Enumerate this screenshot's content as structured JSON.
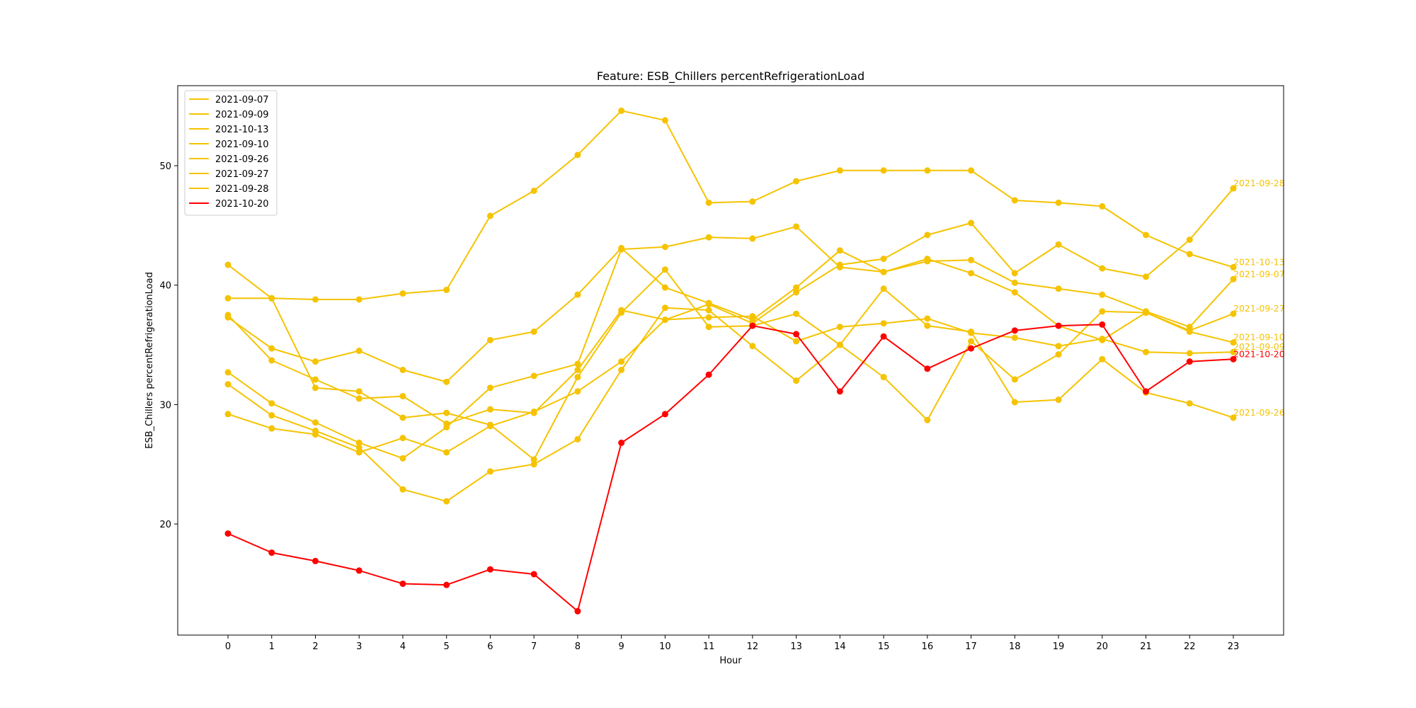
{
  "chart_data": {
    "type": "line",
    "title": "Feature: ESB_Chillers percentRefrigerationLoad",
    "xlabel": "Hour",
    "ylabel": "ESB_Chillers percentRefrigerationLoad",
    "x": [
      0,
      1,
      2,
      3,
      4,
      5,
      6,
      7,
      8,
      9,
      10,
      11,
      12,
      13,
      14,
      15,
      16,
      17,
      18,
      19,
      20,
      21,
      22,
      23
    ],
    "xticks": [
      "0",
      "1",
      "2",
      "3",
      "4",
      "5",
      "6",
      "7",
      "8",
      "9",
      "10",
      "11",
      "12",
      "13",
      "14",
      "15",
      "16",
      "17",
      "18",
      "19",
      "20",
      "21",
      "22",
      "23"
    ],
    "xlim": [
      -1.15,
      24.15
    ],
    "ylim": [
      10.7,
      56.7
    ],
    "yticks": [
      20,
      30,
      40,
      50
    ],
    "yticklabels": [
      "20",
      "30",
      "40",
      "50"
    ],
    "grid": false,
    "legend_position": "upper-left",
    "colors": {
      "highlight": "#ff0000",
      "normal": "#f5c300",
      "axis": "#000000"
    },
    "series": [
      {
        "name": "2021-09-07",
        "color": "#f5c300",
        "end_label": "2021-09-07",
        "values": [
          32.7,
          30.1,
          28.5,
          26.8,
          25.5,
          28.1,
          31.4,
          32.4,
          33.4,
          43.0,
          43.2,
          44.0,
          43.9,
          44.9,
          41.5,
          41.1,
          42.0,
          42.1,
          40.2,
          39.7,
          39.2,
          37.8,
          36.5,
          40.5
        ]
      },
      {
        "name": "2021-09-09",
        "color": "#f5c300",
        "end_label": "2021-09-09",
        "values": [
          29.2,
          28.0,
          27.5,
          26.0,
          27.2,
          26.0,
          28.2,
          29.4,
          31.1,
          33.6,
          37.1,
          37.3,
          37.4,
          35.3,
          36.5,
          36.8,
          37.2,
          36.0,
          35.6,
          34.9,
          35.5,
          34.4,
          34.3,
          34.4
        ]
      },
      {
        "name": "2021-10-13",
        "color": "#f5c300",
        "end_label": "2021-10-13",
        "values": [
          38.9,
          38.9,
          38.8,
          38.8,
          39.3,
          39.6,
          45.8,
          47.9,
          50.9,
          54.6,
          53.8,
          46.9,
          47.0,
          48.7,
          49.6,
          49.6,
          49.6,
          49.6,
          47.1,
          46.9,
          46.6,
          44.2,
          42.6,
          41.5
        ]
      },
      {
        "name": "2021-09-10",
        "color": "#f5c300",
        "end_label": "2021-09-10",
        "values": [
          37.3,
          34.7,
          33.6,
          34.5,
          32.9,
          31.9,
          35.4,
          36.1,
          39.2,
          43.1,
          39.8,
          38.5,
          37.1,
          39.8,
          42.9,
          41.1,
          42.2,
          41.0,
          39.4,
          36.6,
          35.4,
          37.7,
          36.1,
          35.2
        ]
      },
      {
        "name": "2021-09-26",
        "color": "#f5c300",
        "end_label": "2021-09-26",
        "values": [
          31.7,
          29.1,
          27.8,
          26.4,
          22.9,
          21.9,
          24.4,
          25.0,
          27.1,
          32.9,
          38.1,
          37.9,
          34.9,
          32.0,
          35.0,
          39.7,
          36.6,
          36.1,
          30.2,
          30.4,
          33.8,
          31.0,
          30.1,
          28.9
        ]
      },
      {
        "name": "2021-09-27",
        "color": "#f5c300",
        "end_label": "2021-09-27",
        "values": [
          41.7,
          38.9,
          31.4,
          31.1,
          28.9,
          29.3,
          28.3,
          25.4,
          32.3,
          37.7,
          41.3,
          36.5,
          36.6,
          37.6,
          35.0,
          32.3,
          28.7,
          35.3,
          32.1,
          34.2,
          37.8,
          37.7,
          36.2,
          37.6
        ]
      },
      {
        "name": "2021-09-28",
        "color": "#f5c300",
        "end_label": "2021-09-28",
        "values": [
          37.5,
          33.7,
          32.1,
          30.5,
          30.7,
          28.4,
          29.6,
          29.3,
          32.9,
          37.9,
          37.1,
          38.4,
          36.8,
          39.4,
          41.7,
          42.2,
          44.2,
          45.2,
          41.0,
          43.4,
          41.4,
          40.7,
          43.8,
          48.1
        ]
      },
      {
        "name": "2021-10-20",
        "color": "#ff0000",
        "end_label": "2021-10-20",
        "values": [
          19.2,
          17.6,
          16.9,
          16.1,
          15.0,
          14.9,
          16.2,
          15.8,
          12.7,
          26.8,
          29.2,
          32.5,
          36.6,
          35.9,
          31.1,
          35.7,
          33.0,
          34.7,
          36.2,
          36.6,
          36.7,
          31.1,
          33.6,
          33.8
        ]
      }
    ]
  }
}
